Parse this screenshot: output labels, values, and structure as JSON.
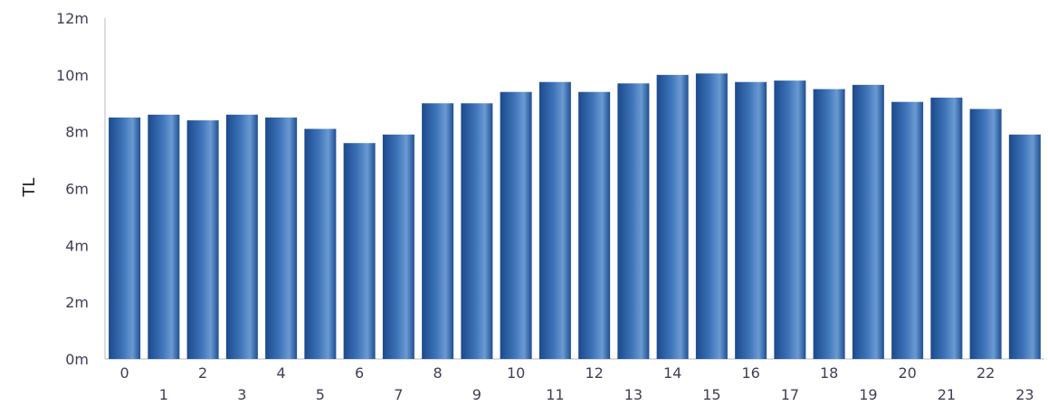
{
  "chart_data": {
    "type": "bar",
    "categories": [
      "0",
      "1",
      "2",
      "3",
      "4",
      "5",
      "6",
      "7",
      "8",
      "9",
      "10",
      "11",
      "12",
      "13",
      "14",
      "15",
      "16",
      "17",
      "18",
      "19",
      "20",
      "21",
      "22",
      "23"
    ],
    "values": [
      8.5,
      8.6,
      8.4,
      8.6,
      8.5,
      8.1,
      7.6,
      7.9,
      9.0,
      9.0,
      9.4,
      9.75,
      9.4,
      9.7,
      10.0,
      10.05,
      9.75,
      9.8,
      9.5,
      9.65,
      9.05,
      9.2,
      8.8,
      7.9
    ],
    "ylabel": "TL",
    "ylim": [
      0,
      12
    ],
    "yticks": [
      {
        "value": 0,
        "label": "0m"
      },
      {
        "value": 2,
        "label": "2m"
      },
      {
        "value": 4,
        "label": "4m"
      },
      {
        "value": 6,
        "label": "6m"
      },
      {
        "value": 8,
        "label": "8m"
      },
      {
        "value": 10,
        "label": "10m"
      },
      {
        "value": 12,
        "label": "12m"
      }
    ],
    "grid": false,
    "bar_color": "#1e4f93"
  }
}
